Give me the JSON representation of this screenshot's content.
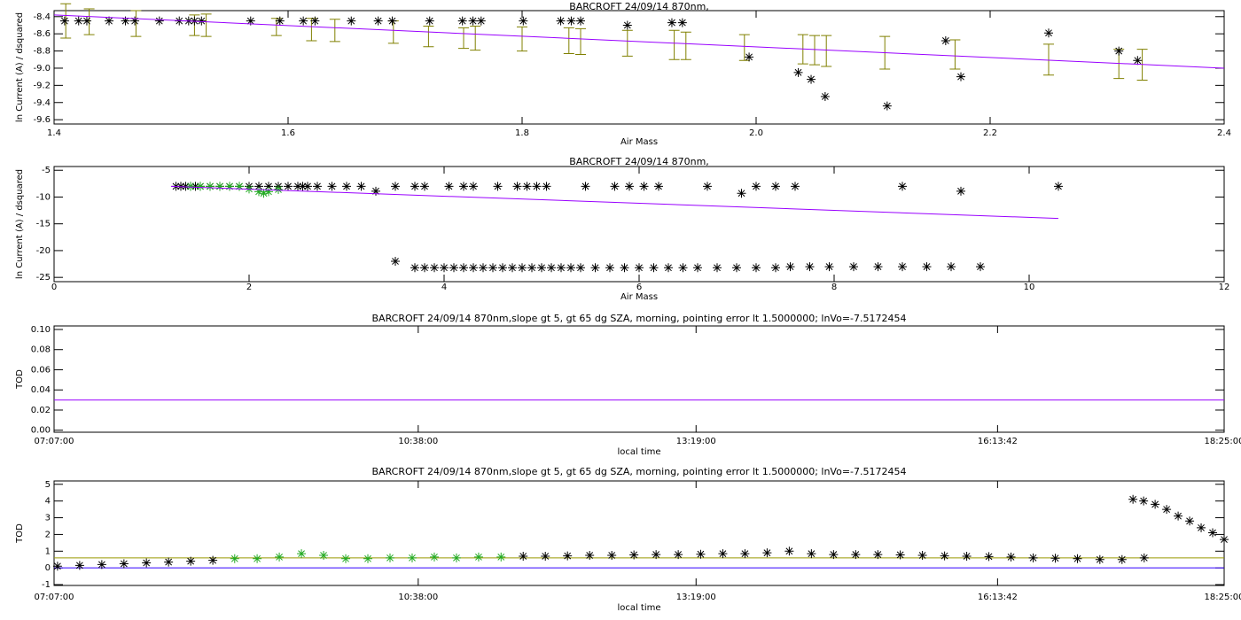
{
  "chart_data": [
    {
      "type": "scatter",
      "title": "BARCROFT 24/09/14 870nm,",
      "xlabel": "Air Mass",
      "ylabel": "ln Current (A) / dsquared",
      "xlim": [
        1.4,
        2.4
      ],
      "ylim": [
        -9.65,
        -8.33
      ],
      "xticks": [
        1.4,
        1.6,
        1.8,
        {
          "value": 2,
          "label": "2.0"
        },
        2.2,
        2.4
      ],
      "yticks": [
        -8.4,
        -8.6,
        -8.8,
        {
          "value": -9,
          "label": "-9.0"
        },
        -9.2,
        -9.4,
        -9.6
      ],
      "error_bars": {
        "color": "#808000",
        "x": [
          1.41,
          1.43,
          1.47,
          1.52,
          1.53,
          1.59,
          1.62,
          1.64,
          1.69,
          1.72,
          1.75,
          1.76,
          1.8,
          1.84,
          1.85,
          1.89,
          1.93,
          1.94,
          1.99,
          2.04,
          2.05,
          2.06,
          2.11,
          2.17,
          2.25,
          2.31,
          2.33
        ],
        "center": [
          -8.45,
          -8.46,
          -8.48,
          -8.5,
          -8.5,
          -8.52,
          -8.55,
          -8.56,
          -8.58,
          -8.63,
          -8.65,
          -8.65,
          -8.66,
          -8.68,
          -8.69,
          -8.71,
          -8.73,
          -8.74,
          -8.76,
          -8.78,
          -8.79,
          -8.8,
          -8.82,
          -8.84,
          -8.9,
          -8.95,
          -8.96
        ],
        "error": [
          0.2,
          0.15,
          0.15,
          0.12,
          0.13,
          0.1,
          0.13,
          0.13,
          0.13,
          0.12,
          0.12,
          0.14,
          0.14,
          0.15,
          0.15,
          0.15,
          0.17,
          0.16,
          0.15,
          0.17,
          0.17,
          0.18,
          0.19,
          0.17,
          0.18,
          0.17,
          0.18
        ]
      },
      "series": [
        {
          "color": "#000000",
          "marker": "asterisk",
          "x": [
            1.409,
            1.421,
            1.428,
            1.447,
            1.461,
            1.469,
            1.49,
            1.507,
            1.515,
            1.52,
            1.526,
            1.568,
            1.593,
            1.613,
            1.623,
            1.654,
            1.677,
            1.689,
            1.721,
            1.749,
            1.758,
            1.765,
            1.801,
            1.833,
            1.842,
            1.85,
            1.89,
            1.928,
            1.937,
            1.994,
            2.036,
            2.047,
            2.059,
            2.112,
            2.162,
            2.175,
            2.25,
            2.31,
            2.326
          ],
          "values": [
            -8.45,
            -8.45,
            -8.45,
            -8.45,
            -8.45,
            -8.45,
            -8.45,
            -8.45,
            -8.45,
            -8.45,
            -8.45,
            -8.45,
            -8.45,
            -8.45,
            -8.45,
            -8.45,
            -8.45,
            -8.45,
            -8.45,
            -8.45,
            -8.45,
            -8.45,
            -8.45,
            -8.45,
            -8.45,
            -8.45,
            -8.5,
            -8.47,
            -8.47,
            -8.87,
            -9.05,
            -9.13,
            -9.33,
            -9.44,
            -8.68,
            -9.1,
            -8.59,
            -8.8,
            -8.91
          ]
        },
        {
          "color": "#9900ff",
          "marker": "none",
          "x": [
            1.4,
            2.4
          ],
          "values": [
            -8.38,
            -9.0
          ]
        }
      ]
    },
    {
      "type": "scatter",
      "title": "BARCROFT 24/09/14 870nm,",
      "xlabel": "Air Mass",
      "ylabel": "ln Current (A) / dsquared",
      "xlim": [
        0,
        12
      ],
      "ylim": [
        -25.8,
        -4.3
      ],
      "xticks": [
        0,
        2,
        4,
        6,
        8,
        10,
        12
      ],
      "yticks": [
        -5,
        -10,
        -15,
        -20,
        -25
      ],
      "series": [
        {
          "color": "#000000",
          "marker": "asterisk",
          "x": [
            1.25,
            1.3,
            1.35,
            1.4,
            1.45,
            1.5,
            1.6,
            1.7,
            1.8,
            1.9,
            2.0,
            2.1,
            2.2,
            2.3,
            2.4,
            2.5,
            2.55,
            2.6,
            2.7,
            2.85,
            3.0,
            3.15,
            3.3,
            3.5,
            3.7,
            3.8,
            4.05,
            4.2,
            4.3,
            4.55,
            4.75,
            4.85,
            4.95,
            5.05,
            5.45,
            5.75,
            5.9,
            6.05,
            6.2,
            6.7,
            7.05,
            7.2,
            7.4,
            7.6,
            8.7,
            9.3,
            10.3
          ],
          "values": [
            -8,
            -8,
            -8,
            -8,
            -8,
            -8,
            -8,
            -8,
            -8,
            -8,
            -8,
            -8,
            -8,
            -8,
            -8,
            -8,
            -8,
            -8,
            -8,
            -8,
            -8,
            -8,
            -8.9,
            -8,
            -8,
            -8,
            -8,
            -8,
            -8,
            -8,
            -8,
            -8,
            -8,
            -8,
            -8,
            -8,
            -8,
            -8,
            -8,
            -8,
            -9.3,
            -8,
            -8,
            -8,
            -8,
            -8.9,
            -8
          ]
        },
        {
          "color": "#000000",
          "marker": "asterisk",
          "x": [
            3.5,
            3.7,
            3.8,
            3.9,
            4.0,
            4.1,
            4.2,
            4.3,
            4.4,
            4.5,
            4.6,
            4.7,
            4.8,
            4.9,
            5.0,
            5.1,
            5.2,
            5.3,
            5.4,
            5.55,
            5.7,
            5.85,
            6.0,
            6.15,
            6.3,
            6.45,
            6.6,
            6.8,
            7.0,
            7.2,
            7.4,
            7.55,
            7.75,
            7.95,
            8.2,
            8.45,
            8.7,
            8.95,
            9.2,
            9.5
          ],
          "values": [
            -22.0,
            -23.2,
            -23.2,
            -23.2,
            -23.2,
            -23.2,
            -23.2,
            -23.2,
            -23.2,
            -23.2,
            -23.2,
            -23.2,
            -23.2,
            -23.2,
            -23.2,
            -23.2,
            -23.2,
            -23.2,
            -23.2,
            -23.2,
            -23.2,
            -23.2,
            -23.2,
            -23.2,
            -23.2,
            -23.2,
            -23.2,
            -23.2,
            -23.2,
            -23.2,
            -23.2,
            -23.0,
            -23.0,
            -23.0,
            -23.0,
            -23.0,
            -23.0,
            -23.0,
            -23.0,
            -23.0
          ]
        },
        {
          "color": "#22aa22",
          "marker": "asterisk",
          "x": [
            1.4,
            1.5,
            1.6,
            1.7,
            1.8,
            1.9,
            2.0,
            2.1,
            2.15,
            2.2,
            2.3
          ],
          "values": [
            -8.0,
            -8.0,
            -8.0,
            -8.0,
            -8.0,
            -8.0,
            -8.5,
            -9.0,
            -9.3,
            -9.0,
            -8.6
          ]
        },
        {
          "color": "#9900ff",
          "marker": "none",
          "x": [
            1.2,
            10.3
          ],
          "values": [
            -8.0,
            -14.0
          ]
        }
      ]
    },
    {
      "type": "scatter",
      "title": "BARCROFT 24/09/14 870nm,slope gt 5, gt 65 dg SZA, morning, pointing error lt 1.5000000; lnVo=-7.5172454",
      "xlabel": "local time",
      "ylabel": "TOD",
      "xlim": [
        25620,
        66300
      ],
      "ylim": [
        -0.002,
        0.1035
      ],
      "xticks": [
        {
          "value": 25620,
          "label": "07:07:00"
        },
        {
          "value": 38280,
          "label": "10:38:00"
        },
        {
          "value": 47940,
          "label": "13:19:00"
        },
        {
          "value": 58422,
          "label": "16:13:42"
        },
        {
          "value": 66300,
          "label": "18:25:00"
        }
      ],
      "yticks": [
        {
          "value": 0,
          "label": "0.00"
        },
        {
          "value": 0.02,
          "label": "0.02"
        },
        {
          "value": 0.04,
          "label": "0.04"
        },
        {
          "value": 0.06,
          "label": "0.06"
        },
        {
          "value": 0.08,
          "label": "0.08"
        },
        {
          "value": 0.1,
          "label": "0.10"
        }
      ],
      "series": [
        {
          "color": "#9900ff",
          "marker": "none",
          "x": [
            25620,
            66300
          ],
          "values": [
            0.03,
            0.03
          ]
        }
      ]
    },
    {
      "type": "scatter",
      "title": "BARCROFT 24/09/14 870nm,slope gt 5, gt 65 dg SZA, morning, pointing error lt 1.5000000; lnVo=-7.5172454",
      "xlabel": "local time",
      "ylabel": "TOD",
      "xlim": [
        25620,
        66300
      ],
      "ylim": [
        -1.05,
        5.2
      ],
      "xticks": [
        {
          "value": 25620,
          "label": "07:07:00"
        },
        {
          "value": 38280,
          "label": "10:38:00"
        },
        {
          "value": 47940,
          "label": "13:19:00"
        },
        {
          "value": 58422,
          "label": "16:13:42"
        },
        {
          "value": 66300,
          "label": "18:25:00"
        }
      ],
      "yticks": [
        -1,
        0,
        1,
        2,
        3,
        4,
        5
      ],
      "series": [
        {
          "color": "#999900",
          "marker": "none",
          "x": [
            25620,
            66300
          ],
          "values": [
            0.6,
            0.6
          ]
        },
        {
          "color": "#3300ff",
          "marker": "none",
          "x": [
            25620,
            66300
          ],
          "values": [
            0,
            0
          ]
        },
        {
          "color": "#000000",
          "marker": "asterisk",
          "x": [
            25740,
            26510,
            27280,
            28050,
            28830,
            29600,
            30370,
            31140,
            41930,
            42700,
            43470,
            44240,
            45010,
            45780,
            46550,
            47320,
            48100,
            48870,
            49640,
            50410,
            51180,
            51950,
            52720,
            53490,
            54260,
            55040,
            55810,
            56580,
            57350,
            58120,
            58890,
            59660,
            60430,
            61200,
            61980,
            62750,
            63520,
            63130,
            63500,
            63900,
            64300,
            64700,
            65100,
            65500,
            65900,
            66300
          ],
          "values": [
            0.1,
            0.15,
            0.2,
            0.25,
            0.3,
            0.35,
            0.4,
            0.45,
            0.7,
            0.7,
            0.72,
            0.75,
            0.75,
            0.78,
            0.8,
            0.8,
            0.82,
            0.85,
            0.85,
            0.9,
            1.0,
            0.85,
            0.8,
            0.8,
            0.8,
            0.78,
            0.75,
            0.72,
            0.7,
            0.68,
            0.65,
            0.6,
            0.58,
            0.55,
            0.5,
            0.5,
            0.6,
            4.1,
            4.0,
            3.8,
            3.5,
            3.1,
            2.8,
            2.4,
            2.1,
            1.7
          ]
        },
        {
          "color": "#22aa22",
          "marker": "asterisk",
          "x": [
            31900,
            32680,
            33450,
            34220,
            34990,
            35760,
            36530,
            37300,
            38070,
            38840,
            39610,
            40380,
            41160
          ],
          "values": [
            0.55,
            0.55,
            0.65,
            0.85,
            0.75,
            0.55,
            0.55,
            0.6,
            0.6,
            0.65,
            0.6,
            0.65,
            0.65
          ]
        }
      ]
    }
  ]
}
